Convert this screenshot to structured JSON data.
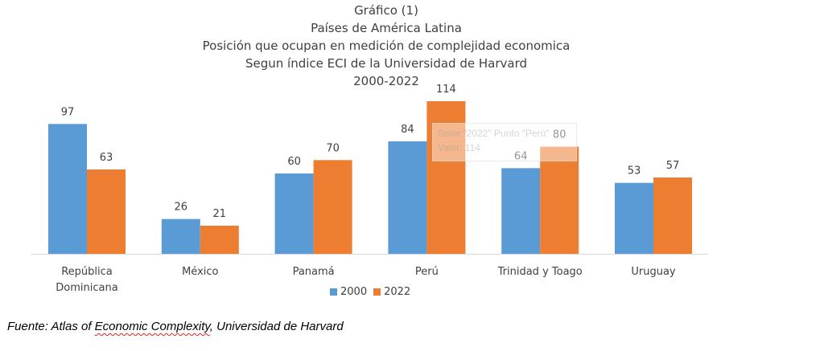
{
  "chart_data": {
    "type": "bar",
    "title_lines": [
      "Gráfico (1)",
      "Países de América Latina",
      "Posición que ocupan en medición de complejidad economica",
      "Segun índice ECI de la Universidad de Harvard",
      "2000-2022"
    ],
    "categories": [
      [
        "República",
        "Dominicana"
      ],
      [
        "México"
      ],
      [
        "Panamá"
      ],
      [
        "Perú"
      ],
      [
        "Trinidad y Toago"
      ],
      [
        "Uruguay"
      ]
    ],
    "series": [
      {
        "name": "2000",
        "color": "#5b9bd5",
        "values": [
          97,
          26,
          60,
          84,
          64,
          53
        ]
      },
      {
        "name": "2022",
        "color": "#ed7d31",
        "values": [
          63,
          21,
          70,
          114,
          80,
          57
        ]
      }
    ],
    "ylim": [
      0,
      114
    ],
    "grid": false,
    "legend_position": "bottom",
    "data_labels": true
  },
  "tooltip": {
    "line1": "Serie \"2022\" Punto \"Perú\"",
    "line2": "Valor: 114"
  },
  "source": {
    "prefix": "Fuente: Atlas of ",
    "underlined": "Economic Complexity",
    "suffix": ", Universidad de Harvard"
  }
}
